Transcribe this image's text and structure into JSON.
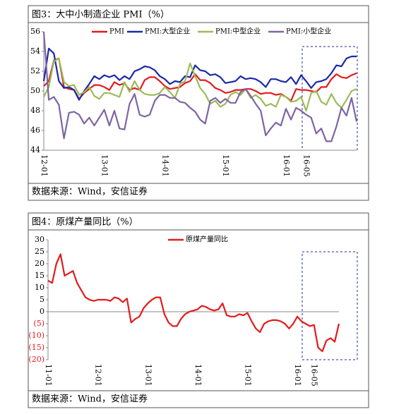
{
  "chart_data": [
    {
      "type": "line",
      "title": "图3：大中小制造企业 PMI（%）",
      "source": "数据来源：Wind，安信证券",
      "categories": [
        "12-01",
        null,
        null,
        null,
        null,
        null,
        null,
        null,
        null,
        null,
        null,
        null,
        "13-01",
        null,
        null,
        null,
        null,
        null,
        null,
        null,
        null,
        null,
        null,
        null,
        "14-01",
        null,
        null,
        null,
        null,
        null,
        null,
        null,
        null,
        null,
        null,
        null,
        "15-01",
        null,
        null,
        null,
        null,
        null,
        null,
        null,
        null,
        null,
        null,
        null,
        "16-01",
        null,
        null,
        null,
        "16-05",
        null,
        null,
        null,
        null,
        null,
        null,
        null,
        null,
        null,
        null
      ],
      "ylim": [
        44,
        56
      ],
      "yticks": [
        44,
        46,
        48,
        50,
        52,
        54,
        56
      ],
      "series": [
        {
          "name": "PMI",
          "color": "#e41a1c",
          "values": [
            50.5,
            51.0,
            53.1,
            53.3,
            50.4,
            50.2,
            50.1,
            49.2,
            49.8,
            50.2,
            50.6,
            50.6,
            50.4,
            50.1,
            50.9,
            50.6,
            50.8,
            50.1,
            50.3,
            50.1,
            51.1,
            51.4,
            51.4,
            51.0,
            50.5,
            50.2,
            50.3,
            50.4,
            50.8,
            51.0,
            51.7,
            51.1,
            51.1,
            50.8,
            50.3,
            50.1,
            49.8,
            49.9,
            50.1,
            50.1,
            50.2,
            50.2,
            50.0,
            49.7,
            49.8,
            49.8,
            49.6,
            49.7,
            49.4,
            49.0,
            50.2,
            50.1,
            50.1,
            50.0,
            49.9,
            50.4,
            50.4,
            51.2,
            51.7,
            51.4,
            51.3,
            51.6,
            51.8
          ]
        },
        {
          "name": "PMI:大型企业",
          "color": "#1a2aa8",
          "values": [
            51.0,
            54.3,
            53.8,
            51.0,
            50.3,
            50.4,
            50.1,
            49.1,
            50.0,
            50.7,
            51.5,
            51.2,
            51.6,
            51.4,
            51.6,
            51.1,
            51.5,
            51.2,
            52.0,
            52.2,
            52.5,
            52.4,
            52.1,
            51.5,
            51.2,
            50.7,
            51.0,
            50.9,
            51.5,
            51.4,
            52.6,
            52.1,
            52.0,
            51.6,
            51.7,
            51.4,
            50.8,
            50.9,
            51.0,
            51.5,
            51.2,
            51.3,
            51.2,
            50.9,
            50.4,
            51.2,
            51.2,
            51.0,
            50.9,
            51.4,
            50.7,
            51.6,
            51.0,
            50.3,
            50.9,
            51.0,
            51.2,
            51.8,
            52.6,
            52.5,
            53.3,
            53.5,
            53.5
          ]
        },
        {
          "name": "PMI:中型企业",
          "color": "#9bbb59",
          "values": [
            49.4,
            50.4,
            53.0,
            53.3,
            50.9,
            50.5,
            50.6,
            49.6,
            49.9,
            50.4,
            49.5,
            49.2,
            49.8,
            49.8,
            49.6,
            49.4,
            50.9,
            49.9,
            51.0,
            50.1,
            49.7,
            49.6,
            49.6,
            49.8,
            50.4,
            49.9,
            49.3,
            50.7,
            51.0,
            52.8,
            51.5,
            50.3,
            49.7,
            48.7,
            49.0,
            48.4,
            48.7,
            49.6,
            49.9,
            49.6,
            50.2,
            49.3,
            49.6,
            49.2,
            48.5,
            48.7,
            48.4,
            49.6,
            49.4,
            48.9,
            49.0,
            49.4,
            48.0,
            49.8,
            50.0,
            48.9,
            48.6,
            49.7,
            48.8,
            48.3,
            49.1,
            50.0,
            50.2
          ]
        },
        {
          "name": "PMI:小型企业",
          "color": "#7f64a2",
          "values": [
            56.0,
            49.1,
            49.4,
            48.6,
            45.2,
            47.8,
            47.9,
            47.6,
            46.7,
            47.3,
            46.5,
            47.3,
            48.1,
            46.5,
            48.0,
            46.2,
            46.1,
            48.7,
            49.7,
            47.6,
            47.4,
            47.6,
            49.0,
            49.6,
            49.6,
            49.3,
            49.3,
            48.9,
            48.8,
            48.3,
            47.9,
            47.1,
            46.7,
            49.0,
            49.3,
            48.8,
            49.2,
            48.8,
            48.8,
            49.9,
            50.2,
            49.5,
            48.7,
            48.0,
            45.5,
            46.2,
            46.8,
            46.5,
            48.2,
            47.1,
            48.3,
            48.0,
            47.6,
            47.3,
            45.7,
            46.2,
            44.9,
            44.9,
            46.4,
            48.3,
            47.5,
            49.3,
            46.9
          ]
        }
      ]
    },
    {
      "type": "line",
      "title": "图4：原煤产量同比（%）",
      "source": "数据来源：Wind，安信证券",
      "categories": [
        "11-01",
        null,
        null,
        null,
        null,
        null,
        null,
        null,
        null,
        null,
        null,
        null,
        "12-01",
        null,
        null,
        null,
        null,
        null,
        null,
        null,
        null,
        null,
        null,
        null,
        "13-01",
        null,
        null,
        null,
        null,
        null,
        null,
        null,
        null,
        null,
        null,
        null,
        "14-01",
        null,
        null,
        null,
        null,
        null,
        null,
        null,
        null,
        null,
        null,
        null,
        "15-01",
        null,
        null,
        null,
        null,
        null,
        null,
        null,
        null,
        null,
        null,
        null,
        "16-01",
        null,
        null,
        null,
        "16-05",
        null,
        null,
        null,
        null,
        null,
        null
      ],
      "ylim": [
        -20,
        30
      ],
      "yticks": [
        {
          "value": -20,
          "label": "(20)"
        },
        {
          "value": -15,
          "label": "(15)"
        },
        {
          "value": -10,
          "label": "(10)"
        },
        {
          "value": -5,
          "label": "(5)"
        },
        0,
        5,
        10,
        15,
        20,
        25,
        30
      ],
      "series": [
        {
          "name": "原煤产量同比",
          "color": "#e41a1c",
          "values": [
            13,
            12,
            20,
            24,
            15,
            16,
            17,
            12,
            9,
            6,
            5,
            4.5,
            5,
            5,
            5,
            4.5,
            6,
            5.5,
            4,
            5.5,
            -4.5,
            -3,
            -2,
            1.5,
            3.5,
            5,
            6,
            6,
            -1,
            -4.5,
            -6,
            -6,
            -3,
            -1,
            0,
            0.5,
            1,
            2.5,
            2,
            1,
            0.5,
            1,
            3.5,
            -1.5,
            -2,
            -2,
            -1,
            -1.5,
            -0.5,
            -4,
            -7,
            -8.5,
            -5,
            -4,
            -3.5,
            -3.5,
            -4,
            -5,
            -7,
            -5,
            -2,
            -4,
            -5,
            -6,
            -5.5,
            -15,
            -16.5,
            -12,
            -11,
            -12.5,
            -5
          ]
        }
      ]
    }
  ]
}
